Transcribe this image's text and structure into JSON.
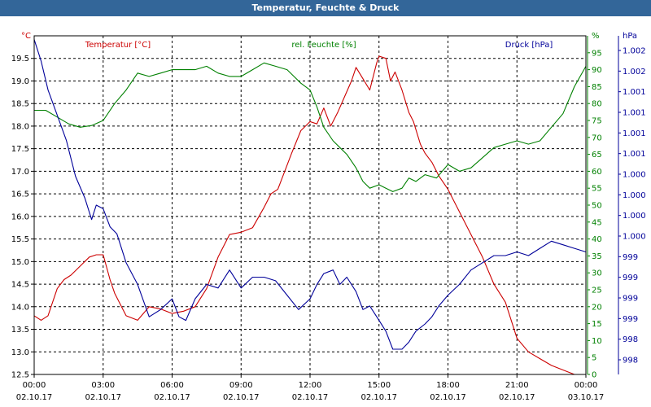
{
  "window": {
    "title": "Temperatur, Feuchte & Druck"
  },
  "chart_data": {
    "type": "line",
    "title": "Temperatur, Feuchte & Druck",
    "grid": true,
    "x_ticks": [
      {
        "time": "00:00",
        "date": "02.10.17"
      },
      {
        "time": "03:00",
        "date": "02.10.17"
      },
      {
        "time": "06:00",
        "date": "02.10.17"
      },
      {
        "time": "09:00",
        "date": "02.10.17"
      },
      {
        "time": "12:00",
        "date": "02.10.17"
      },
      {
        "time": "15:00",
        "date": "02.10.17"
      },
      {
        "time": "18:00",
        "date": "02.10.17"
      },
      {
        "time": "21:00",
        "date": "02.10.17"
      },
      {
        "time": "00:00",
        "date": "03.10.17"
      }
    ],
    "x_hours": [
      0,
      24
    ],
    "axes": {
      "temperature": {
        "label": "Temperatur [°C]",
        "unit": "°C",
        "color": "#cc0000",
        "range": [
          12.5,
          20.0
        ],
        "ticks": [
          "19.5",
          "19.0",
          "18.5",
          "18.0",
          "17.5",
          "17.0",
          "16.5",
          "16.0",
          "15.5",
          "15.0",
          "14.5",
          "14.0",
          "13.5",
          "13.0",
          "12.5"
        ]
      },
      "humidity": {
        "label": "rel. Feuchte [%]",
        "unit": "%",
        "color": "#008000",
        "range": [
          0,
          100
        ],
        "ticks": [
          "95",
          "90",
          "85",
          "80",
          "75",
          "70",
          "65",
          "60",
          "55",
          "50",
          "45",
          "40",
          "35",
          "30",
          "25",
          "20",
          "15",
          "10",
          "5",
          "0"
        ]
      },
      "pressure": {
        "label": "Druck [hPa]",
        "unit": "hPa",
        "color": "#000099",
        "range": [
          997.65,
          1002.35
        ],
        "ticks": [
          "1.002",
          "1.002",
          "1.001",
          "1.001",
          "1.001",
          "1.001",
          "1.000",
          "1.000",
          "1.000",
          "1.000",
          "999",
          "999",
          "999",
          "999",
          "998",
          "998"
        ]
      }
    },
    "series": [
      {
        "name": "Temperatur [°C]",
        "axis": "temperature",
        "x": [
          0,
          0.3,
          0.6,
          1,
          1.3,
          1.6,
          2,
          2.4,
          2.7,
          3,
          3.3,
          3.5,
          4,
          4.5,
          5,
          5.5,
          6,
          6.5,
          7,
          7.5,
          8,
          8.5,
          9,
          9.5,
          10,
          10.3,
          10.6,
          10.9,
          11.2,
          11.6,
          12,
          12.3,
          12.6,
          12.9,
          13.2,
          13.5,
          13.8,
          14,
          14.3,
          14.6,
          14.9,
          15,
          15.3,
          15.5,
          15.7,
          16,
          16.3,
          16.5,
          16.8,
          17,
          17.3,
          17.6,
          18,
          18.5,
          19,
          19.5,
          20,
          20.5,
          21,
          21.5,
          22,
          22.5,
          23,
          23.5,
          24
        ],
        "y": [
          13.8,
          13.7,
          13.8,
          14.4,
          14.6,
          14.7,
          14.9,
          15.1,
          15.15,
          15.15,
          14.6,
          14.3,
          13.8,
          13.7,
          14.0,
          13.95,
          13.85,
          13.9,
          14.0,
          14.4,
          15.1,
          15.6,
          15.65,
          15.75,
          16.2,
          16.5,
          16.6,
          17.0,
          17.4,
          17.9,
          18.1,
          18.05,
          18.4,
          18.0,
          18.3,
          18.65,
          19.0,
          19.3,
          19.05,
          18.8,
          19.4,
          19.55,
          19.5,
          19.0,
          19.2,
          18.8,
          18.3,
          18.1,
          17.6,
          17.4,
          17.2,
          16.9,
          16.6,
          16.1,
          15.6,
          15.1,
          14.5,
          14.1,
          13.3,
          13.0,
          12.85,
          12.7,
          12.6,
          12.5,
          12.5
        ]
      },
      {
        "name": "rel. Feuchte [%]",
        "axis": "humidity",
        "x": [
          0,
          0.5,
          1,
          1.5,
          2,
          2.5,
          3,
          3.5,
          4,
          4.5,
          5,
          5.5,
          6,
          6.5,
          7,
          7.5,
          8,
          8.5,
          9,
          9.5,
          10,
          10.5,
          11,
          11.3,
          11.6,
          12,
          12.3,
          12.6,
          13,
          13.3,
          13.6,
          14,
          14.3,
          14.6,
          15,
          15.3,
          15.6,
          16,
          16.3,
          16.6,
          17,
          17.5,
          18,
          18.5,
          19,
          19.5,
          20,
          20.5,
          21,
          21.5,
          22,
          22.5,
          23,
          23.5,
          24
        ],
        "y": [
          78,
          78,
          76,
          74,
          73,
          73.5,
          75,
          80,
          84,
          89,
          88,
          89,
          90,
          90,
          90,
          91,
          89,
          88,
          88,
          90,
          92,
          91,
          90,
          88,
          86,
          84,
          79,
          73,
          69,
          67,
          65,
          61,
          57,
          55,
          56,
          55,
          54,
          55,
          58,
          57,
          59,
          58,
          62,
          60,
          61,
          64,
          67,
          68,
          69,
          68,
          69,
          73,
          77,
          85,
          91
        ]
      },
      {
        "name": "Druck [hPa]",
        "axis": "pressure",
        "x": [
          0,
          0.3,
          0.6,
          1,
          1.4,
          1.8,
          2.2,
          2.5,
          2.7,
          3,
          3.3,
          3.6,
          4,
          4.5,
          5,
          5.5,
          6,
          6.3,
          6.6,
          7,
          7.5,
          8,
          8.5,
          9,
          9.5,
          10,
          10.5,
          11,
          11.5,
          12,
          12.3,
          12.6,
          13,
          13.3,
          13.6,
          14,
          14.3,
          14.6,
          15,
          15.3,
          15.6,
          16,
          16.3,
          16.6,
          17,
          17.3,
          17.6,
          18,
          18.5,
          19,
          19.5,
          20,
          20.5,
          21,
          21.5,
          22,
          22.5,
          23,
          23.5,
          24
        ],
        "y": [
          1002.3,
          1002.0,
          1001.6,
          1001.25,
          1000.9,
          1000.4,
          1000.1,
          999.8,
          1000.0,
          999.95,
          999.7,
          999.6,
          999.2,
          998.9,
          998.45,
          998.55,
          998.7,
          998.45,
          998.4,
          998.7,
          998.9,
          998.85,
          999.1,
          998.85,
          999.0,
          999.0,
          998.95,
          998.75,
          998.55,
          998.7,
          998.9,
          999.05,
          999.1,
          998.9,
          999.0,
          998.8,
          998.55,
          998.6,
          998.4,
          998.25,
          998.0,
          998.0,
          998.1,
          998.25,
          998.35,
          998.45,
          998.6,
          998.75,
          998.9,
          999.1,
          999.2,
          999.3,
          999.3,
          999.35,
          999.3,
          999.4,
          999.5,
          999.45,
          999.4,
          999.35
        ]
      }
    ]
  }
}
